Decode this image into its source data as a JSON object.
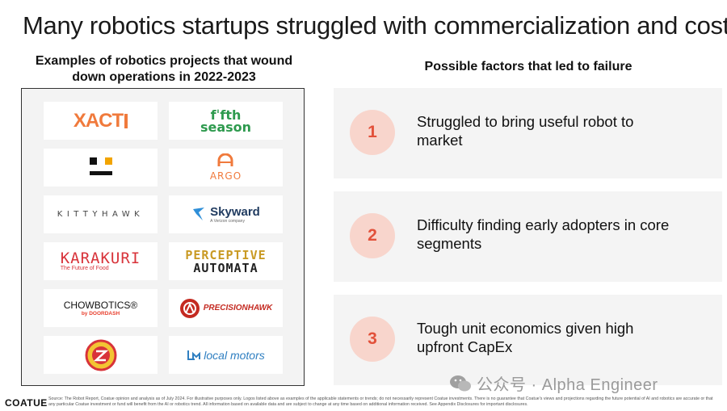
{
  "title": "Many robotics startups struggled with commercialization and cost",
  "left_heading": "Examples of robotics projects that wound down operations in 2022-2023",
  "logos": {
    "xact": {
      "text": "XACT"
    },
    "fifth_season": {
      "line1": "fˈfth",
      "line2": "season"
    },
    "dot_logo": {},
    "argo": {
      "text": "ARGO"
    },
    "kittyhawk": {
      "text": "KITTYHAWK"
    },
    "skyward": {
      "text": "Skyward",
      "sub": "A Verizon company"
    },
    "karakuri": {
      "text": "KARAKURI",
      "sub": "The Future of Food"
    },
    "perceptive": {
      "line1": "PERCEPTIVE",
      "line2": "AUTOMATA"
    },
    "chowbotics": {
      "text": "CHOWBOTICS®",
      "sub": "by DOORDASH"
    },
    "precisionhawk": {
      "text": "PRECISIONHAWK"
    },
    "zume": {
      "text": "ZUME PIZZA"
    },
    "local_motors": {
      "text": "local motors"
    }
  },
  "right_heading": "Possible factors that led to failure",
  "factors": [
    {
      "number": "1",
      "text": "Struggled to bring useful robot to market"
    },
    {
      "number": "2",
      "text": "Difficulty finding early adopters in core segments"
    },
    {
      "number": "3",
      "text": "Tough unit economics given high upfront CapEx"
    }
  ],
  "footer": {
    "brand": "COATUE",
    "footnote": "Source: The Robot Report, Coatue opinion and analysis as of July 2024. For illustrative purposes only. Logos listed above as examples of the applicable statements or trends; do not necessarily represent Coatue investments. There is no guarantee that Coatue's views and projections regarding the future potential of AI and robotics are accurate or that any particular Coatue investment or fund will benefit from the AI or robotics trend. All information based on available data and are subject to change at any time based on additional information received. See Appendix Disclosures for important disclosures."
  },
  "watermark": {
    "text": "公众号 · Alpha Engineer"
  },
  "colors": {
    "accent": "#e2513a",
    "circle_bg": "#f8d5cc",
    "card_bg": "#f4f4f4",
    "panel_bg": "#f3f3f3"
  }
}
